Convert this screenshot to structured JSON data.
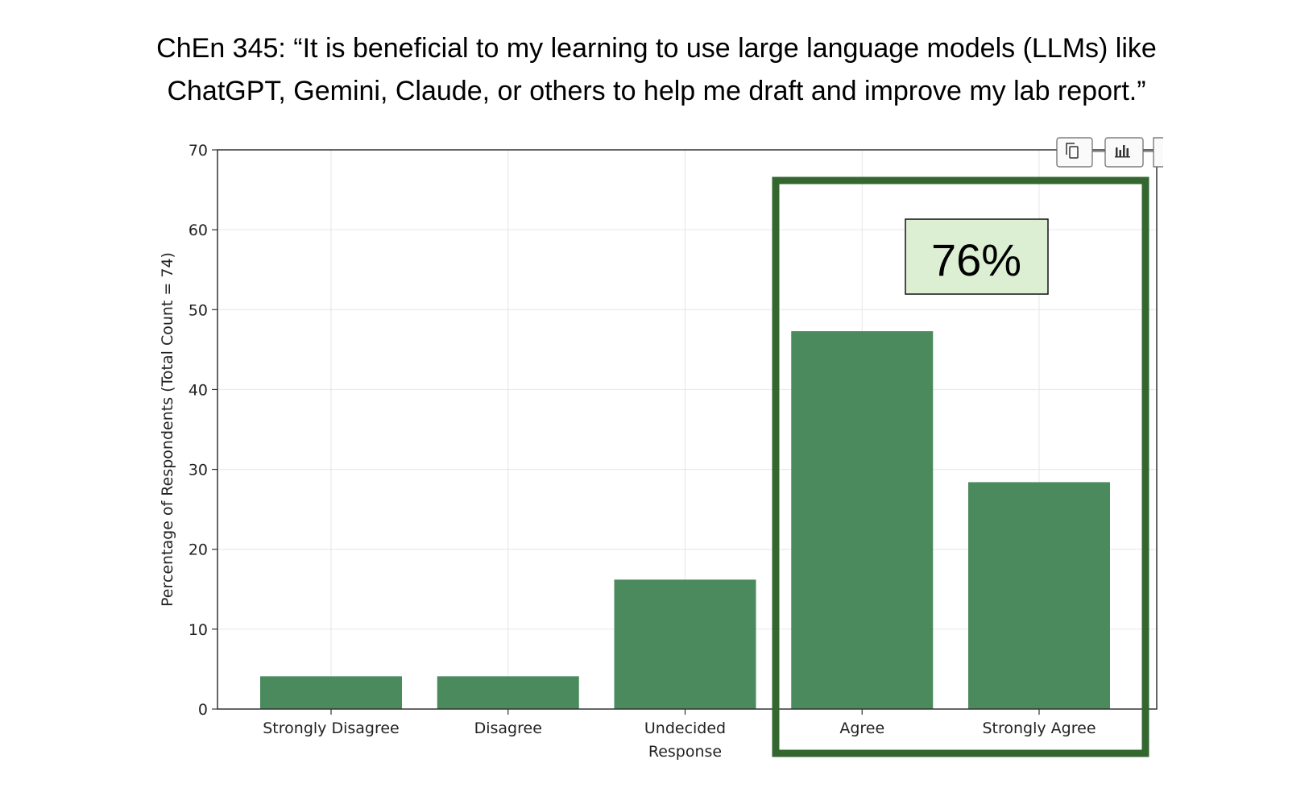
{
  "title_lines": [
    "ChEn 345: “It is beneficial to my learning to use large language models (LLMs) like",
    "ChatGPT, Gemini, Claude, or others to help me draft and improve my lab report.”"
  ],
  "colors": {
    "bar": "#4a8a5d",
    "highlight_border": "#33672f",
    "callout_fill": "#dcefd3",
    "grid": "#e6e6e6"
  },
  "toolbar": [
    {
      "name": "copy-icon"
    },
    {
      "name": "bar-chart-icon"
    }
  ],
  "callout": {
    "text": "76%"
  },
  "chart_data": {
    "type": "bar",
    "categories": [
      [
        "Strongly Disagree"
      ],
      [
        "Disagree"
      ],
      [
        "Undecided",
        "Response"
      ],
      [
        "Agree"
      ],
      [
        "Strongly Agree"
      ]
    ],
    "values": [
      4.1,
      4.1,
      16.2,
      47.3,
      28.4
    ],
    "ylabel": "Percentage of Respondents (Total Count = 74)",
    "xlabel": "",
    "ylim": [
      0,
      70
    ],
    "yticks": [
      0,
      10,
      20,
      30,
      40,
      50,
      60,
      70
    ],
    "grid": true,
    "highlight": {
      "categories": [
        "Agree",
        "Strongly Agree"
      ],
      "label": "76%"
    }
  }
}
